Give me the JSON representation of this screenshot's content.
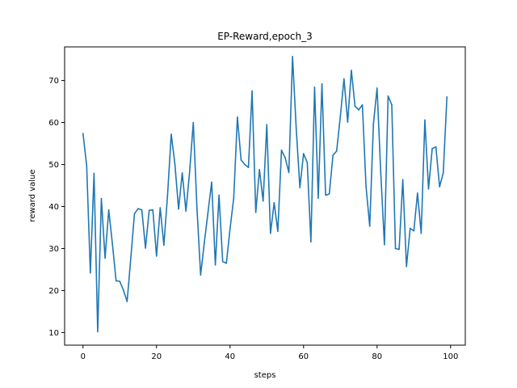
{
  "chart_data": {
    "type": "line",
    "title": "EP-Reward,epoch_3",
    "xlabel": "steps",
    "ylabel": "reward value",
    "xlim": [
      -5,
      104
    ],
    "ylim": [
      7,
      78
    ],
    "xticks": [
      0,
      20,
      40,
      60,
      80,
      100
    ],
    "yticks": [
      10,
      20,
      30,
      40,
      50,
      60,
      70
    ],
    "grid": false,
    "color": "#1f77b4",
    "series": [
      {
        "x": [
          0,
          1,
          2,
          3,
          4,
          5,
          6,
          7,
          8,
          9,
          10,
          11,
          12,
          13,
          14,
          15,
          16,
          17,
          18,
          19,
          20,
          21,
          22,
          23,
          24,
          25,
          26,
          27,
          28,
          29,
          30,
          31,
          32,
          33,
          34,
          35,
          36,
          37,
          38,
          39,
          40,
          41,
          42,
          43,
          44,
          45,
          46,
          47,
          48,
          49,
          50,
          51,
          52,
          53,
          54,
          55,
          56,
          57,
          58,
          59,
          60,
          61,
          62,
          63,
          64,
          65,
          66,
          67,
          68,
          69,
          70,
          71,
          72,
          73,
          74,
          75,
          76,
          77,
          78,
          79,
          80,
          81,
          82,
          83,
          84,
          85,
          86,
          87,
          88,
          89,
          90,
          91,
          92,
          93,
          94,
          95,
          96,
          97,
          98,
          99
        ],
        "values": [
          57.4,
          49.7,
          24.2,
          47.9,
          10.2,
          41.9,
          27.7,
          39.2,
          31.1,
          22.3,
          22.2,
          20.1,
          17.4,
          27.7,
          38.3,
          39.5,
          39.2,
          30.1,
          39.1,
          39.2,
          28.2,
          39.7,
          30.8,
          42.7,
          57.2,
          50.1,
          39.4,
          48.0,
          38.9,
          48.2,
          60.0,
          39.6,
          23.7,
          31.4,
          38.6,
          45.8,
          26.1,
          42.7,
          26.9,
          26.5,
          34.7,
          42.0,
          61.3,
          51.1,
          50.0,
          49.3,
          67.5,
          38.6,
          48.8,
          41.3,
          59.5,
          33.6,
          40.9,
          34.1,
          53.4,
          51.6,
          48.1,
          75.7,
          58.6,
          44.5,
          52.6,
          50.5,
          31.6,
          68.4,
          42.0,
          69.2,
          42.7,
          43.0,
          52.2,
          53.2,
          61.4,
          70.4,
          60.1,
          72.4,
          63.9,
          63.0,
          64.2,
          44.7,
          35.3,
          59.6,
          68.2,
          48.0,
          30.9,
          66.3,
          64.2,
          30.0,
          29.8,
          46.4,
          25.7,
          34.8,
          34.2,
          43.2,
          33.6,
          60.6,
          44.2,
          53.8,
          54.2,
          44.7,
          48.0,
          66.1
        ]
      }
    ]
  }
}
